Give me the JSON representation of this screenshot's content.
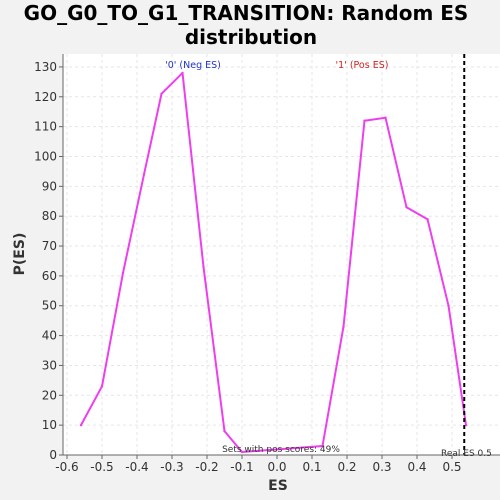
{
  "chart_data": {
    "type": "line",
    "title": "GO_G0_TO_G1_TRANSITION: Random ES distribution",
    "title_lines": [
      "GO_G0_TO_G1_TRANSITION: Random ES",
      "distribution"
    ],
    "xlabel": "ES",
    "ylabel": "P(ES)",
    "xlim": [
      -0.6,
      0.6
    ],
    "ylim": [
      0,
      134
    ],
    "xticks": [
      -0.6,
      -0.5,
      -0.4,
      -0.3,
      -0.2,
      -0.1,
      0.0,
      0.1,
      0.2,
      0.3,
      0.4,
      0.5
    ],
    "xtick_labels": [
      "-0.6",
      "-0.5",
      "-0.4",
      "-0.3",
      "-0.2",
      "-0.1",
      "0.0",
      "0.1",
      "0.2",
      "0.3",
      "0.4",
      "0.5"
    ],
    "yticks": [
      0,
      10,
      20,
      30,
      40,
      50,
      60,
      70,
      80,
      90,
      100,
      110,
      120,
      130
    ],
    "ytick_labels": [
      "0",
      "10",
      "20",
      "30",
      "40",
      "50",
      "60",
      "70",
      "80",
      "90",
      "100",
      "110",
      "120",
      "130"
    ],
    "grid": true,
    "series": [
      {
        "color": "#ee3fee",
        "x": [
          -0.56,
          -0.5,
          -0.44,
          -0.38,
          -0.33,
          -0.27,
          -0.21,
          -0.15,
          -0.1,
          0.13,
          0.19,
          0.25,
          0.31,
          0.37,
          0.43,
          0.49,
          0.54
        ],
        "y": [
          10,
          23,
          61,
          94,
          121,
          128,
          63,
          8,
          1,
          3,
          43,
          112,
          113,
          83,
          79,
          50,
          10
        ]
      }
    ],
    "real_es": 0.535,
    "real_es_label": "Real ES 0.5",
    "annotations": [
      {
        "text": "'0' (Neg ES)",
        "color": "#2233cc"
      },
      {
        "text": "'1' (Pos ES)",
        "color": "#cc2222"
      }
    ],
    "note": "Sets with pos scores: 49%"
  }
}
